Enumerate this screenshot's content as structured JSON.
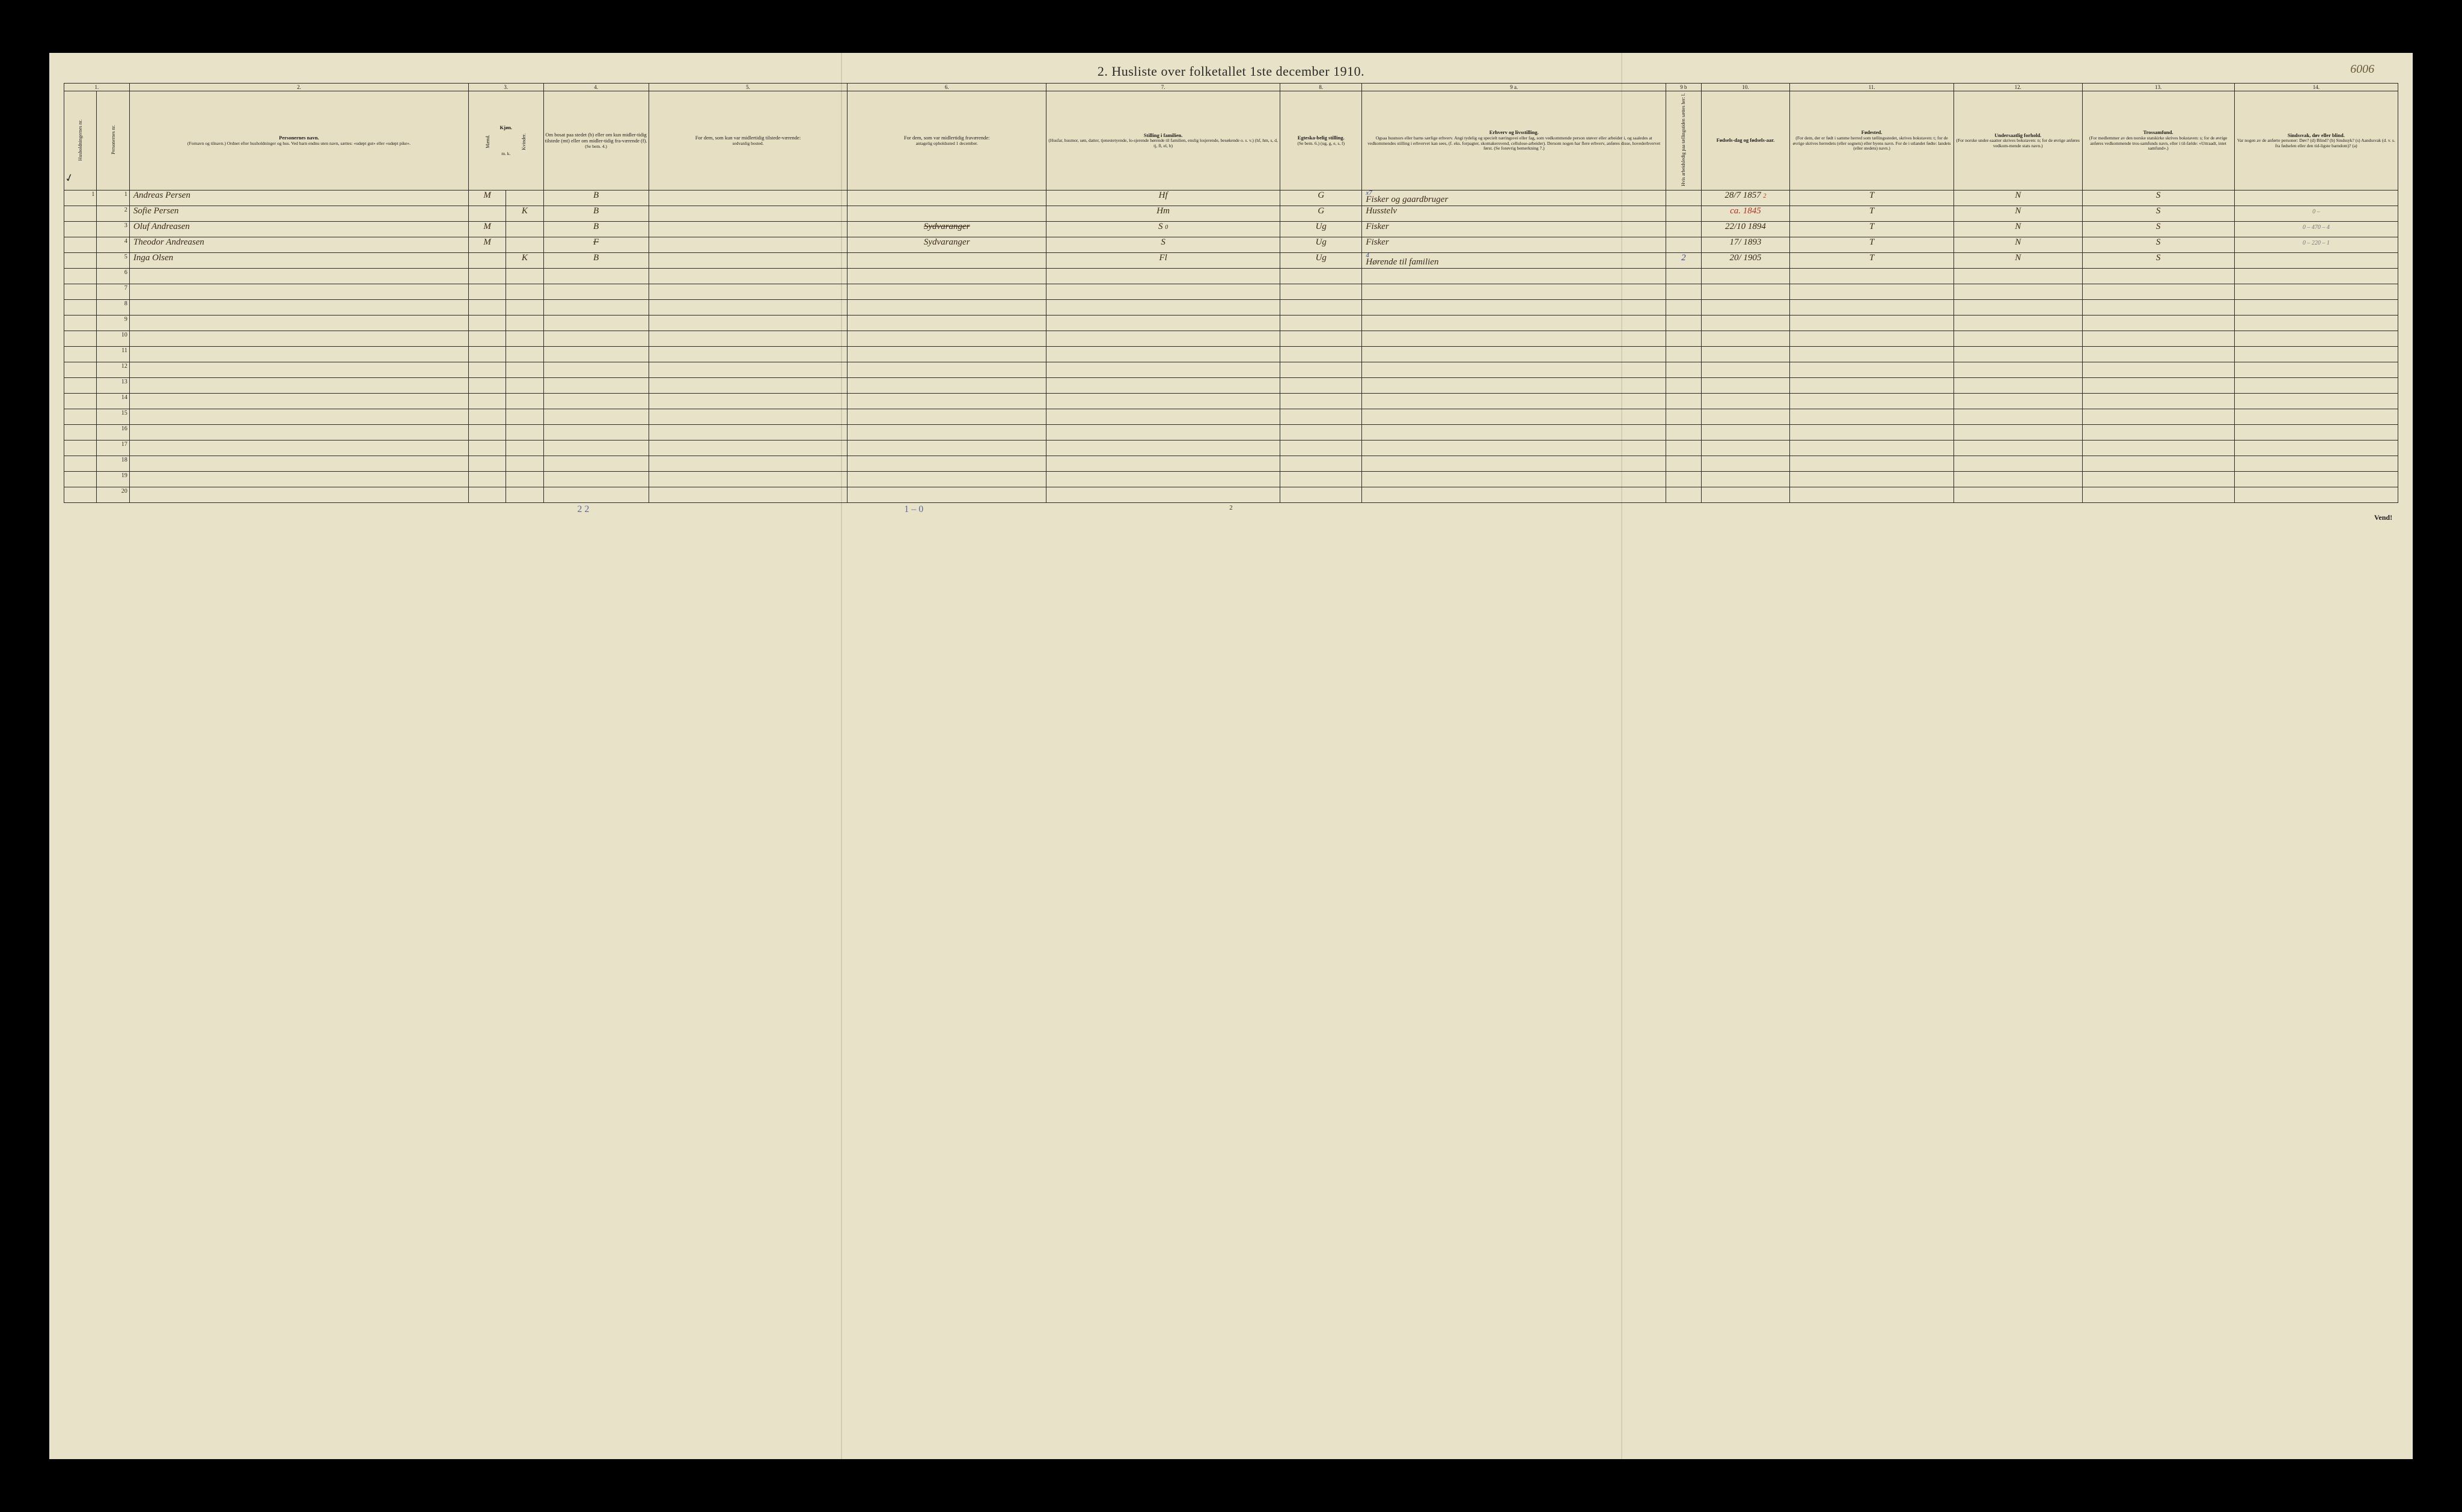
{
  "title": "2.  Husliste over folketallet 1ste december 1910.",
  "top_right_handwritten": "6006",
  "page_number_bottom": "2",
  "vend_label": "Vend!",
  "bottom_annotation_1": "2  2",
  "bottom_annotation_2": "1 – 0",
  "tick_mark": "✓",
  "column_numbers": [
    "1.",
    "2.",
    "3.",
    "4.",
    "5.",
    "6.",
    "7.",
    "8.",
    "9 a.",
    "9 b",
    "10.",
    "11.",
    "12.",
    "13.",
    "14."
  ],
  "headers": {
    "col1a": "Husholdningernes nr.",
    "col1b": "Personernes nr.",
    "col2": "Personernes navn.",
    "col2_sub": "(Fornavn og tilnavn.)\nOrdnet efter husholdninger og hus.\nVed barn endnu uten navn, sættes: «udøpt gut»\neller «udøpt pike».",
    "col3": "Kjøn.",
    "col3a": "Mænd.",
    "col3b": "Kvinder.",
    "col3_sub": "m.  k.",
    "col4": "Om bosat paa stedet (b) eller om kun midler-tidig tilstede (mt) eller om midler-tidig fra-værende (f).",
    "col4_sub": "(Se bem. 4.)",
    "col5": "For dem, som kun var midlertidig tilstede-værende:",
    "col5_sub": "sedvanlig bosted.",
    "col6": "For dem, som var midlertidig fraværende:",
    "col6_sub": "antagelig opholdssted 1 december.",
    "col7": "Stilling i familien.",
    "col7_sub": "(Husfar, husmor, søn, datter, tjenestetyende, lo-sjerende hørende til familien, enslig losjerende, besøkende o. s. v.)\n(hf, hm, s, d, tj, fl, el, b)",
    "col8": "Egteska-belig stilling.",
    "col8_sub": "(Se bem. 6.)\n(ug, g, e, s, f)",
    "col9a": "Erhverv og livsstilling.",
    "col9a_sub": "Ogsaa husmors eller barns særlige erhverv. Angi tydelig og specielt næringsvei eller fag, som vedkommende person utøver eller arbeider i, og saaledes at vedkommendes stilling i erhvervet kan sees, (f. eks. forpagter, skomakersvend, cellulose-arbeider). Dersom nogen har flere erhverv, anføres disse, hovederhvervet først.\n(Se forøvrig bemerkning 7.)",
    "col9b": "Hvis arbeidsledig paa tællingstiden sættes her: l.",
    "col10": "Fødsels-dag og fødsels-aar.",
    "col11": "Fødested.",
    "col11_sub": "(For dem, der er født i samme herred som tællingsstedet, skrives bokstaven: t; for de øvrige skrives herredets (eller sognets) eller byens navn. For de i utlandet fødte: landets (eller stedets) navn.)",
    "col12": "Undersaatlig forhold.",
    "col12_sub": "(For norske under-saatter skrives bokstaven: n; for de øvrige anføres vedkom-mende stats navn.)",
    "col13": "Trossamfund.",
    "col13_sub": "(For medlemmer av den norske statskirke skrives bokstaven: s; for de øvrige anføres vedkommende tros-samfunds navn, eller i til-fælde: «Uttraadt, intet samfund».)",
    "col14": "Sindssvak, døv eller blind.",
    "col14_sub": "Var nogen av de anførte personer:\nDøv?        (d)\nBlind?      (b)\nSindssyk? (s)\nAandssvak (d. v. s. fra fødselen eller den tid-ligste barndom)? (a)"
  },
  "rows": [
    {
      "hh": "1",
      "pn": "1",
      "name": "Andreas Persen",
      "m": "M",
      "k": "",
      "bosat": "B",
      "tilstede": "",
      "fravar": "",
      "stilling": "Hf",
      "egte": "G",
      "erhverv": "Fisker og gaardbruger",
      "erhverv_note": "x7",
      "ledig": "",
      "fodsel": "28/7 1857",
      "fodsel_note": "2",
      "fodested": "T",
      "undersaat": "N",
      "tros": "S",
      "sinds": ""
    },
    {
      "hh": "",
      "pn": "2",
      "name": "Sofie Persen",
      "m": "",
      "k": "K",
      "bosat": "B",
      "tilstede": "",
      "fravar": "",
      "stilling": "Hm",
      "egte": "G",
      "erhverv": "Husstelv",
      "erhverv_note": "",
      "ledig": "",
      "fodsel": "ca. 1845",
      "fodsel_red": true,
      "fodested": "T",
      "undersaat": "N",
      "tros": "S",
      "sinds": "0 –"
    },
    {
      "hh": "",
      "pn": "3",
      "name": "Oluf Andreasen",
      "m": "M",
      "k": "",
      "bosat": "B",
      "tilstede": "",
      "fravar": "Sydvaranger",
      "fravar_strike": true,
      "stilling": "S",
      "stilling_note": "0",
      "egte": "Ug",
      "erhverv": "Fisker",
      "erhverv_note": "",
      "ledig": "",
      "fodsel": "22/10 1894",
      "fodested": "T",
      "undersaat": "N",
      "tros": "S",
      "sinds": "0 – 470 – 4"
    },
    {
      "hh": "",
      "pn": "4",
      "name": "Theodor Andreasen",
      "m": "M",
      "k": "",
      "bosat": "F",
      "bosat_strike": true,
      "tilstede": "",
      "fravar": "Sydvaranger",
      "stilling": "S",
      "egte": "Ug",
      "erhverv": "Fisker",
      "erhverv_note": "",
      "ledig": "",
      "fodsel": "17/ 1893",
      "fodested": "T",
      "undersaat": "N",
      "tros": "S",
      "sinds": "0 – 220 – 1"
    },
    {
      "hh": "",
      "pn": "5",
      "name": "Inga Olsen",
      "m": "",
      "k": "K",
      "bosat": "B",
      "tilstede": "",
      "fravar": "",
      "stilling": "Fl",
      "egte": "Ug",
      "erhverv": "Hørende til familien",
      "erhverv_note": "4",
      "ledig": "2",
      "ledig_blue": true,
      "fodsel": "20/ 1905",
      "fodested": "T",
      "undersaat": "N",
      "tros": "S",
      "sinds": ""
    }
  ],
  "empty_row_numbers": [
    "6",
    "7",
    "8",
    "9",
    "10",
    "11",
    "12",
    "13",
    "14",
    "15",
    "16",
    "17",
    "18",
    "19",
    "20"
  ],
  "colors": {
    "paper": "#e8e2c8",
    "ink": "#1a1a1a",
    "hand_brown": "#3a2a1a",
    "hand_red": "#b03020",
    "hand_blue": "#3a4a8a",
    "frame_black": "#000000"
  }
}
